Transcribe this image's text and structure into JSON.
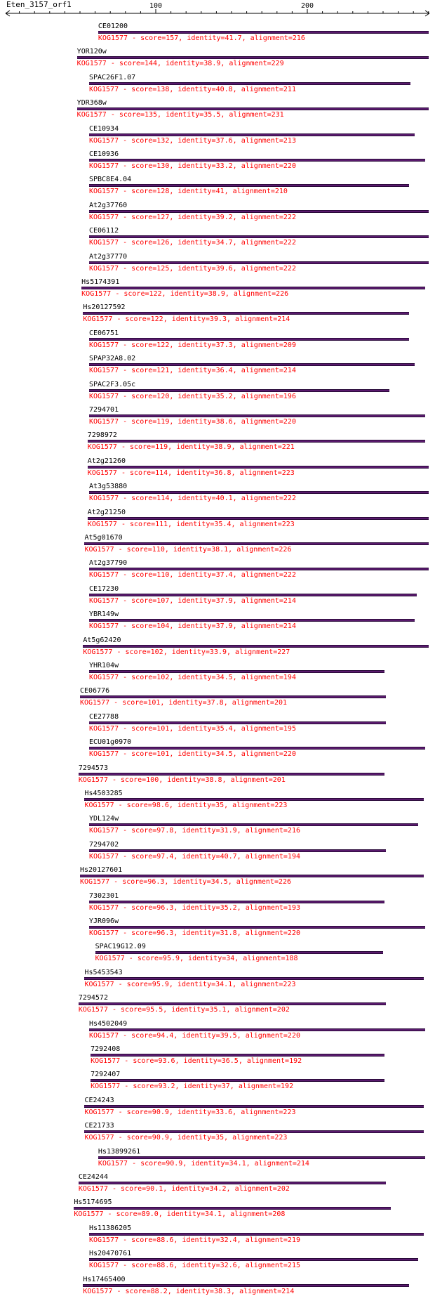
{
  "query": {
    "name": "Eten_3157_orf1"
  },
  "ruler": {
    "labels": [
      "100",
      "200"
    ]
  },
  "hits": [
    {
      "name": "CE01200",
      "desc": "KOG1577 - score=157, identity=41.7, alignment=216",
      "start": 62,
      "end": 280
    },
    {
      "name": "YOR120w",
      "desc": "KOG1577 - score=144, identity=38.9, alignment=229",
      "start": 48,
      "end": 280
    },
    {
      "name": "SPAC26F1.07",
      "desc": "KOG1577 - score=138, identity=40.8, alignment=211",
      "start": 56,
      "end": 268
    },
    {
      "name": "YDR368w",
      "desc": "KOG1577 - score=135, identity=35.5, alignment=231",
      "start": 48,
      "end": 280
    },
    {
      "name": "CE10934",
      "desc": "KOG1577 - score=132, identity=37.6, alignment=213",
      "start": 56,
      "end": 271
    },
    {
      "name": "CE10936",
      "desc": "KOG1577 - score=130, identity=33.2, alignment=220",
      "start": 56,
      "end": 278
    },
    {
      "name": "SPBC8E4.04",
      "desc": "KOG1577 - score=128, identity=41, alignment=210",
      "start": 56,
      "end": 267
    },
    {
      "name": "At2g37760",
      "desc": "KOG1577 - score=127, identity=39.2, alignment=222",
      "start": 56,
      "end": 280
    },
    {
      "name": "CE06112",
      "desc": "KOG1577 - score=126, identity=34.7, alignment=222",
      "start": 56,
      "end": 280
    },
    {
      "name": "At2g37770",
      "desc": "KOG1577 - score=125, identity=39.6, alignment=222",
      "start": 56,
      "end": 280
    },
    {
      "name": "Hs5174391",
      "desc": "KOG1577 - score=122, identity=38.9, alignment=226",
      "start": 51,
      "end": 278
    },
    {
      "name": "Hs20127592",
      "desc": "KOG1577 - score=122, identity=39.3, alignment=214",
      "start": 52,
      "end": 267
    },
    {
      "name": "CE06751",
      "desc": "KOG1577 - score=122, identity=37.3, alignment=209",
      "start": 56,
      "end": 267
    },
    {
      "name": "SPAP32A8.02",
      "desc": "KOG1577 - score=121, identity=36.4, alignment=214",
      "start": 56,
      "end": 271
    },
    {
      "name": "SPAC2F3.05c",
      "desc": "KOG1577 - score=120, identity=35.2, alignment=196",
      "start": 56,
      "end": 254
    },
    {
      "name": "7294701",
      "desc": "KOG1577 - score=119, identity=38.6, alignment=220",
      "start": 56,
      "end": 278
    },
    {
      "name": "7298972",
      "desc": "KOG1577 - score=119, identity=38.9, alignment=221",
      "start": 55,
      "end": 278
    },
    {
      "name": "At2g21260",
      "desc": "KOG1577 - score=114, identity=36.8, alignment=223",
      "start": 55,
      "end": 280
    },
    {
      "name": "At3g53880",
      "desc": "KOG1577 - score=114, identity=40.1, alignment=222",
      "start": 56,
      "end": 280
    },
    {
      "name": "At2g21250",
      "desc": "KOG1577 - score=111, identity=35.4, alignment=223",
      "start": 55,
      "end": 280
    },
    {
      "name": "At5g01670",
      "desc": "KOG1577 - score=110, identity=38.1, alignment=226",
      "start": 53,
      "end": 280
    },
    {
      "name": "At2g37790",
      "desc": "KOG1577 - score=110, identity=37.4, alignment=222",
      "start": 56,
      "end": 280
    },
    {
      "name": "CE17230",
      "desc": "KOG1577 - score=107, identity=37.9, alignment=214",
      "start": 56,
      "end": 272
    },
    {
      "name": "YBR149w",
      "desc": "KOG1577 - score=104, identity=37.9, alignment=214",
      "start": 56,
      "end": 271
    },
    {
      "name": "At5g62420",
      "desc": "KOG1577 - score=102, identity=33.9, alignment=227",
      "start": 52,
      "end": 280
    },
    {
      "name": "YHR104w",
      "desc": "KOG1577 - score=102, identity=34.5, alignment=194",
      "start": 56,
      "end": 251
    },
    {
      "name": "CE06776",
      "desc": "KOG1577 - score=101, identity=37.8, alignment=201",
      "start": 50,
      "end": 252
    },
    {
      "name": "CE27788",
      "desc": "KOG1577 - score=101, identity=35.4, alignment=195",
      "start": 56,
      "end": 252
    },
    {
      "name": "ECU01g0970",
      "desc": "KOG1577 - score=101, identity=34.5, alignment=220",
      "start": 56,
      "end": 278
    },
    {
      "name": "7294573",
      "desc": "KOG1577 - score=100, identity=38.8, alignment=201",
      "start": 49,
      "end": 251
    },
    {
      "name": "Hs4503285",
      "desc": "KOG1577 - score=98.6, identity=35, alignment=223",
      "start": 53,
      "end": 277
    },
    {
      "name": "YDL124w",
      "desc": "KOG1577 - score=97.8, identity=31.9, alignment=216",
      "start": 56,
      "end": 273
    },
    {
      "name": "7294702",
      "desc": "KOG1577 - score=97.4, identity=40.7, alignment=194",
      "start": 56,
      "end": 252
    },
    {
      "name": "Hs20127601",
      "desc": "KOG1577 - score=96.3, identity=34.5, alignment=226",
      "start": 50,
      "end": 277
    },
    {
      "name": "7302301",
      "desc": "KOG1577 - score=96.3, identity=35.2, alignment=193",
      "start": 56,
      "end": 251
    },
    {
      "name": "YJR096w",
      "desc": "KOG1577 - score=96.3, identity=31.8, alignment=220",
      "start": 56,
      "end": 278
    },
    {
      "name": "SPAC19G12.09",
      "desc": "KOG1577 - score=95.9, identity=34, alignment=188",
      "start": 60,
      "end": 250
    },
    {
      "name": "Hs5453543",
      "desc": "KOG1577 - score=95.9, identity=34.1, alignment=223",
      "start": 53,
      "end": 277
    },
    {
      "name": "7294572",
      "desc": "KOG1577 - score=95.5, identity=35.1, alignment=202",
      "start": 49,
      "end": 252
    },
    {
      "name": "Hs4502049",
      "desc": "KOG1577 - score=94.4, identity=39.5, alignment=220",
      "start": 56,
      "end": 278
    },
    {
      "name": "7292408",
      "desc": "KOG1577 - score=93.6, identity=36.5, alignment=192",
      "start": 57,
      "end": 251
    },
    {
      "name": "7292407",
      "desc": "KOG1577 - score=93.2, identity=37, alignment=192",
      "start": 57,
      "end": 251
    },
    {
      "name": "CE24243",
      "desc": "KOG1577 - score=90.9, identity=33.6, alignment=223",
      "start": 53,
      "end": 277
    },
    {
      "name": "CE21733",
      "desc": "KOG1577 - score=90.9, identity=35, alignment=223",
      "start": 53,
      "end": 277
    },
    {
      "name": "Hs13899261",
      "desc": "KOG1577 - score=90.9, identity=34.1, alignment=214",
      "start": 62,
      "end": 278
    },
    {
      "name": "CE24244",
      "desc": "KOG1577 - score=90.1, identity=34.2, alignment=202",
      "start": 49,
      "end": 252
    },
    {
      "name": "Hs5174695",
      "desc": "KOG1577 - score=89.0, identity=34.1, alignment=208",
      "start": 46,
      "end": 255
    },
    {
      "name": "Hs11386205",
      "desc": "KOG1577 - score=88.6, identity=32.4, alignment=219",
      "start": 56,
      "end": 277
    },
    {
      "name": "Hs20470761",
      "desc": "KOG1577 - score=88.6, identity=32.6, alignment=215",
      "start": 56,
      "end": 273
    },
    {
      "name": "Hs17465400",
      "desc": "KOG1577 - score=88.2, identity=38.3, alignment=214",
      "start": 52,
      "end": 267
    }
  ]
}
